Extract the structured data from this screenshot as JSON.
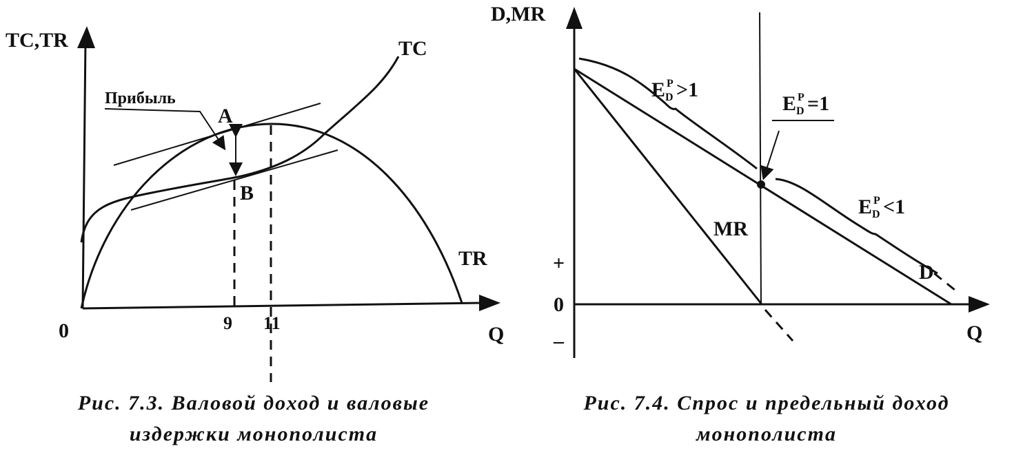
{
  "figures": [
    {
      "y_axis_label": "TC,TR",
      "x_axis_label": "Q",
      "origin": "0",
      "curve_labels": [
        "TC",
        "TR"
      ],
      "profit_label": "Прибыль",
      "points": [
        "A",
        "B"
      ],
      "x_marks": [
        "9",
        "11"
      ],
      "caption": [
        "Рис. 7.3. Валовой доход и валовые",
        "издержки монополиста"
      ]
    },
    {
      "y_axis_label": "D,MR",
      "x_axis_label": "Q",
      "y_marks": [
        "+",
        "0",
        "–"
      ],
      "curve_labels": [
        "MR",
        "D"
      ],
      "elasticity_labels": [
        {
          "base": "E",
          "sup": "P",
          "sub": "D",
          "rel": ">1"
        },
        {
          "base": "E",
          "sup": "P",
          "sub": "D",
          "rel": "=1"
        },
        {
          "base": "E",
          "sup": "P",
          "sub": "D",
          "rel": "<1"
        }
      ],
      "caption": [
        "Рис. 7.4. Спрос и предельный доход",
        "монополиста"
      ]
    }
  ]
}
